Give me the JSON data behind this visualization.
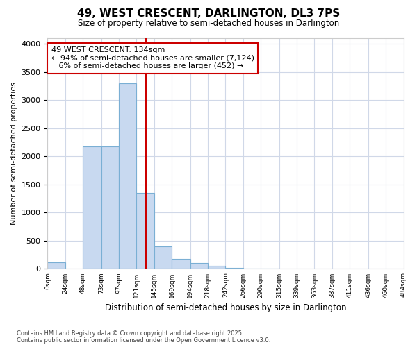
{
  "title1": "49, WEST CRESCENT, DARLINGTON, DL3 7PS",
  "title2": "Size of property relative to semi-detached houses in Darlington",
  "xlabel": "Distribution of semi-detached houses by size in Darlington",
  "ylabel": "Number of semi-detached properties",
  "bar_edges": [
    0,
    24,
    48,
    73,
    97,
    121,
    145,
    169,
    194,
    218,
    242,
    266,
    290,
    315,
    339,
    363,
    387,
    411,
    436,
    460,
    484
  ],
  "bar_heights": [
    120,
    0,
    2170,
    2170,
    3300,
    1350,
    400,
    175,
    100,
    50,
    20,
    5,
    2,
    0,
    0,
    0,
    0,
    0,
    0,
    0
  ],
  "bar_color": "#c8d9f0",
  "bar_edgecolor": "#7aafd4",
  "property_size": 134,
  "annotation_line1": "49 WEST CRESCENT: 134sqm",
  "annotation_line2": "← 94% of semi-detached houses are smaller (7,124)",
  "annotation_line3": "   6% of semi-detached houses are larger (452) →",
  "redline_color": "#cc0000",
  "annotation_box_edgecolor": "#cc0000",
  "ylim": [
    0,
    4100
  ],
  "yticks": [
    0,
    500,
    1000,
    1500,
    2000,
    2500,
    3000,
    3500,
    4000
  ],
  "plot_bg_color": "#ffffff",
  "fig_bg_color": "#ffffff",
  "grid_color": "#d0d8e8",
  "footnote": "Contains HM Land Registry data © Crown copyright and database right 2025.\nContains public sector information licensed under the Open Government Licence v3.0."
}
